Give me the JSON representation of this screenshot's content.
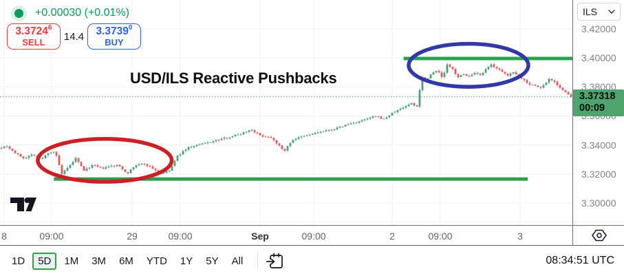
{
  "header": {
    "change_text": "+0.00030 (+0.01%)",
    "sell": {
      "price_main": "3.3724",
      "price_sup": "6",
      "label": "SELL"
    },
    "spread": "14.4",
    "buy": {
      "price_main": "3.3739",
      "price_sup": "0",
      "label": "BUY"
    }
  },
  "price_scale": {
    "currency": "ILS",
    "last_price_text": "3.37318",
    "countdown": "00:09"
  },
  "toolbar": {
    "ranges": [
      "1D",
      "5D",
      "1M",
      "3M",
      "6M",
      "YTD",
      "1Y",
      "5Y",
      "All"
    ],
    "active": "5D",
    "clock": "08:34:51 UTC"
  },
  "icons": {
    "market-open-dot": "green-circle",
    "chevron-down": "v",
    "settings-hexagon": "hexagon-with-circle",
    "calendar-go-to-date": "calendar-with-arrow",
    "tradingview-logo": "tv-mark"
  },
  "chart_data": {
    "type": "candlestick",
    "symbol": "USD/ILS",
    "title": "USD/ILS Reactive Pushbacks",
    "ylim": [
      3.2848,
      3.4399
    ],
    "y_ticks": [
      3.42,
      3.4,
      3.38,
      3.36,
      3.34,
      3.32,
      3.3
    ],
    "y_tick_labels": [
      "3.42000",
      "3.40000",
      "3.38000",
      "3.36000",
      "3.34000",
      "3.32000",
      "3.30000"
    ],
    "x_labels": [
      {
        "text": "8",
        "t": 0.0072,
        "emph": false
      },
      {
        "text": "09:00",
        "t": 0.0901,
        "emph": false
      },
      {
        "text": "29",
        "t": 0.2308,
        "emph": false
      },
      {
        "text": "09:00",
        "t": 0.3149,
        "emph": false
      },
      {
        "text": "Sep",
        "t": 0.4543,
        "emph": true
      },
      {
        "text": "09:00",
        "t": 0.5481,
        "emph": false
      },
      {
        "text": "2",
        "t": 0.6851,
        "emph": false
      },
      {
        "text": "09:00",
        "t": 0.7692,
        "emph": false
      },
      {
        "text": "3",
        "t": 0.9087,
        "emph": false
      }
    ],
    "last_price": 3.37318,
    "countdown": "00:09",
    "candle_count": 208,
    "support_line": {
      "price": 3.3165,
      "t0": 0.094,
      "t1": 0.922
    },
    "resistance_line": {
      "price": 3.3996,
      "t0": 0.705,
      "t1": 1.0
    },
    "ellipses": [
      {
        "name": "red-ellipse",
        "center_t": 0.183,
        "center_price": 3.3294,
        "rx_t": 0.117,
        "ry_price": 0.0148,
        "color_key": "red_ellipse",
        "stroke": 5.5
      },
      {
        "name": "blue-ellipse",
        "center_t": 0.8185,
        "center_price": 3.3949,
        "rx_t": 0.1046,
        "ry_price": 0.0148,
        "color_key": "blue_ellipse",
        "stroke": 5.5
      }
    ],
    "price_path": [
      [
        0.0,
        3.3379
      ],
      [
        0.012,
        3.3394
      ],
      [
        0.026,
        3.3346
      ],
      [
        0.042,
        3.3308
      ],
      [
        0.058,
        3.3337
      ],
      [
        0.072,
        3.3299
      ],
      [
        0.084,
        3.3346
      ],
      [
        0.096,
        3.3356
      ],
      [
        0.108,
        3.3199
      ],
      [
        0.12,
        3.3247
      ],
      [
        0.132,
        3.3308
      ],
      [
        0.147,
        3.3223
      ],
      [
        0.162,
        3.3261
      ],
      [
        0.178,
        3.3237
      ],
      [
        0.192,
        3.3251
      ],
      [
        0.207,
        3.3261
      ],
      [
        0.222,
        3.3204
      ],
      [
        0.237,
        3.3261
      ],
      [
        0.252,
        3.327
      ],
      [
        0.267,
        3.3237
      ],
      [
        0.281,
        3.3204
      ],
      [
        0.296,
        3.3223
      ],
      [
        0.31,
        3.3323
      ],
      [
        0.327,
        3.3379
      ],
      [
        0.349,
        3.3403
      ],
      [
        0.373,
        3.3427
      ],
      [
        0.397,
        3.3451
      ],
      [
        0.418,
        3.3474
      ],
      [
        0.439,
        3.3508
      ],
      [
        0.454,
        3.3465
      ],
      [
        0.475,
        3.3451
      ],
      [
        0.496,
        3.3356
      ],
      [
        0.511,
        3.3436
      ],
      [
        0.535,
        3.3465
      ],
      [
        0.559,
        3.3489
      ],
      [
        0.583,
        3.3508
      ],
      [
        0.607,
        3.3541
      ],
      [
        0.631,
        3.3565
      ],
      [
        0.655,
        3.3598
      ],
      [
        0.671,
        3.3579
      ],
      [
        0.688,
        3.3626
      ],
      [
        0.707,
        3.3664
      ],
      [
        0.719,
        3.3688
      ],
      [
        0.728,
        3.3659
      ],
      [
        0.737,
        3.3868
      ],
      [
        0.745,
        3.3844
      ],
      [
        0.755,
        3.3901
      ],
      [
        0.764,
        3.3915
      ],
      [
        0.773,
        3.3859
      ],
      [
        0.781,
        3.3953
      ],
      [
        0.791,
        3.392
      ],
      [
        0.8,
        3.3868
      ],
      [
        0.81,
        3.3887
      ],
      [
        0.82,
        3.3873
      ],
      [
        0.829,
        3.3892
      ],
      [
        0.839,
        3.3878
      ],
      [
        0.849,
        3.392
      ],
      [
        0.858,
        3.3953
      ],
      [
        0.868,
        3.393
      ],
      [
        0.877,
        3.3901
      ],
      [
        0.887,
        3.3878
      ],
      [
        0.897,
        3.3906
      ],
      [
        0.905,
        3.3878
      ],
      [
        0.915,
        3.3849
      ],
      [
        0.924,
        3.3821
      ],
      [
        0.934,
        3.3811
      ],
      [
        0.944,
        3.3792
      ],
      [
        0.952,
        3.3821
      ],
      [
        0.96,
        3.3859
      ],
      [
        0.969,
        3.3835
      ],
      [
        0.978,
        3.3797
      ],
      [
        0.987,
        3.3764
      ],
      [
        0.998,
        3.3731
      ]
    ],
    "colors": {
      "up": "#4ba179",
      "down": "#e05c5c",
      "grid": "#eef0f4",
      "dotted": "#59a97c",
      "support_resistance": "#2ba14f",
      "last_price_bg": "#4fa36e",
      "red_ellipse": "#cb2026",
      "blue_ellipse": "#3139a8"
    }
  }
}
